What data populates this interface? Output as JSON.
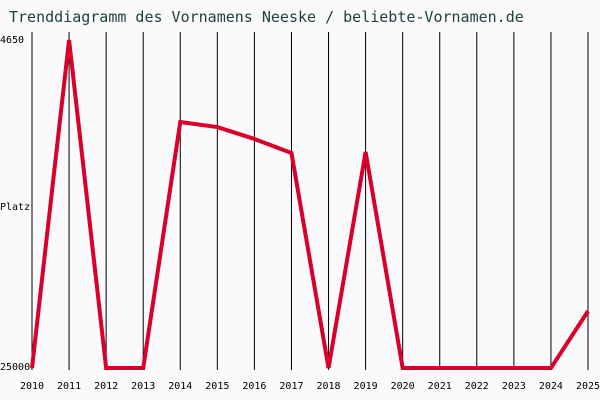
{
  "title": "Trenddiagramm des Vornamens Neeske / beliebte-Vornamen.de",
  "y_axis": {
    "top_label": "4650",
    "bottom_label": "25000",
    "mid_label": "Platz"
  },
  "line_color": "#d9002c",
  "chart_data": {
    "type": "line",
    "title": "Trenddiagramm des Vornamens Neeske / beliebte-Vornamen.de",
    "xlabel": "",
    "ylabel": "Platz",
    "ylim": [
      25000,
      4650
    ],
    "categories": [
      "2010",
      "2011",
      "2012",
      "2013",
      "2014",
      "2015",
      "2016",
      "2017",
      "2018",
      "2019",
      "2020",
      "2021",
      "2022",
      "2023",
      "2024",
      "2025"
    ],
    "series": [
      {
        "name": "Neeske",
        "values": [
          25000,
          4650,
          25000,
          25000,
          9740,
          10050,
          10790,
          11660,
          25000,
          11600,
          25000,
          25000,
          25000,
          25000,
          25000,
          21470
        ]
      }
    ],
    "grid": "vertical"
  }
}
